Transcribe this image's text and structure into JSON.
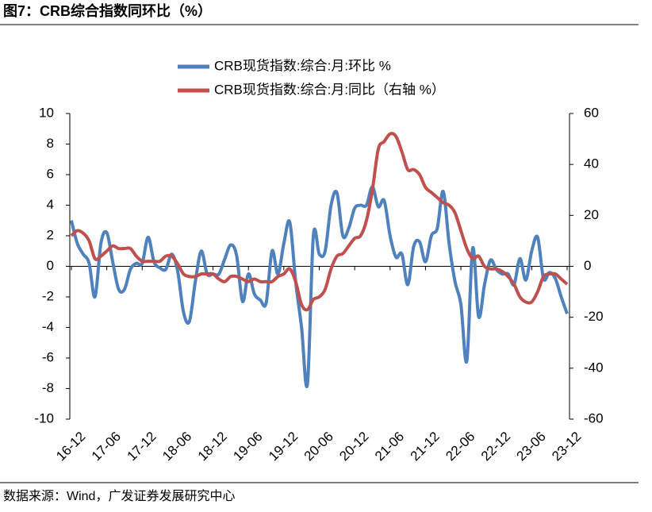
{
  "chart_data": {
    "type": "line",
    "title": "图7：CRB综合指数同环比（%）",
    "source": "数据来源：Wind，广发证券发展研究中心",
    "categories": [
      "16-12",
      null,
      null,
      null,
      null,
      null,
      "17-06",
      null,
      null,
      null,
      null,
      null,
      "17-12",
      null,
      null,
      null,
      null,
      null,
      "18-06",
      null,
      null,
      null,
      null,
      null,
      "18-12",
      null,
      null,
      null,
      null,
      null,
      "19-06",
      null,
      null,
      null,
      null,
      null,
      "19-12",
      null,
      null,
      null,
      null,
      null,
      "20-06",
      null,
      null,
      null,
      null,
      null,
      "20-12",
      null,
      null,
      null,
      null,
      null,
      "21-06",
      null,
      null,
      null,
      null,
      null,
      "21-12",
      null,
      null,
      null,
      null,
      null,
      "22-06",
      null,
      null,
      null,
      null,
      null,
      "22-12",
      null,
      null,
      null,
      null,
      null,
      "23-06",
      null,
      null,
      null,
      null,
      null,
      "23-12"
    ],
    "series": [
      {
        "name": "CRB现货指数:综合:月:环比 %",
        "color": "#4f81bd",
        "axis": "y",
        "values": [
          3.0,
          1.5,
          0.8,
          0.2,
          -2.0,
          1.5,
          2.2,
          0.3,
          -1.5,
          -1.5,
          -0.2,
          0.2,
          0.2,
          1.9,
          0.3,
          -0.1,
          -0.2,
          0.8,
          -0.3,
          -3.0,
          -3.6,
          -1.0,
          1.0,
          -0.5,
          -0.5,
          -0.5,
          0.5,
          1.4,
          0.7,
          -2.3,
          -0.5,
          -1.8,
          -2.2,
          -2.4,
          1.0,
          -0.5,
          1.5,
          2.9,
          -1.0,
          -4.0,
          -7.7,
          2.0,
          0.8,
          1.0,
          4.0,
          4.8,
          2.0,
          2.5,
          3.8,
          4.0,
          4.0,
          5.2,
          3.9,
          4.3,
          2.0,
          0.6,
          0.8,
          -1.2,
          1.3,
          1.6,
          0.3,
          2.0,
          2.5,
          4.9,
          1.5,
          -1.0,
          -2.5,
          -6.2,
          1.2,
          -3.3,
          -1.2,
          0.4,
          -0.2,
          -0.5,
          -0.5,
          -1.2,
          0.5,
          -0.9,
          1.0,
          1.9,
          -0.8,
          -0.4,
          -0.8,
          -2.0,
          -3.1
        ]
      },
      {
        "name": "CRB现货指数:综合:月:同比（右轴 %）",
        "color": "#c0504d",
        "axis": "y2",
        "values": [
          12,
          14,
          13,
          10,
          3,
          4,
          6,
          8,
          7,
          7,
          7,
          4,
          2,
          2,
          2,
          2,
          4,
          4,
          1,
          -3,
          -4,
          -4,
          -3,
          -3,
          -3,
          -5,
          -6,
          -4,
          -4,
          -5,
          -6,
          -5,
          -6,
          -6,
          -6,
          -4,
          -3,
          -1,
          -6,
          -15,
          -17,
          -13,
          -12,
          -9,
          -1,
          4,
          5,
          8,
          11,
          12,
          18,
          30,
          46,
          49,
          52,
          51,
          45,
          38,
          38,
          36,
          31,
          29,
          27,
          25,
          24,
          21,
          14,
          7,
          3,
          4,
          0,
          -1,
          -1,
          -2,
          -4,
          -7,
          -12,
          -14,
          -14,
          -10,
          -4,
          -3,
          -3,
          -5,
          -7
        ]
      }
    ],
    "ylim": [
      -10,
      10
    ],
    "yticks": [
      10,
      8,
      6,
      4,
      2,
      0,
      -2,
      -4,
      -6,
      -8,
      -10
    ],
    "y2lim": [
      -60,
      60
    ],
    "y2ticks": [
      60,
      40,
      20,
      0,
      -20,
      -40,
      -60
    ]
  }
}
